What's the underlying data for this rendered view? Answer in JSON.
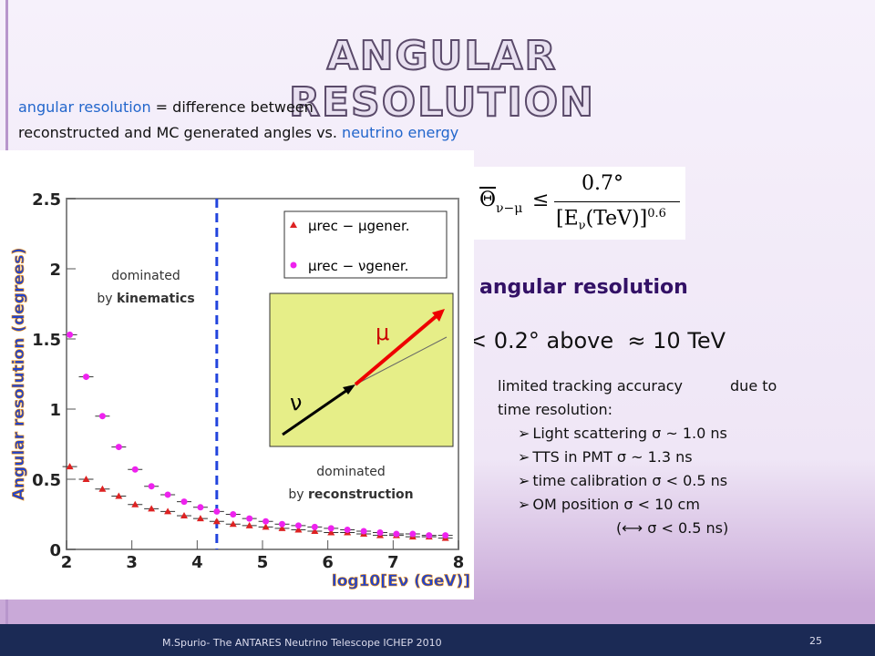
{
  "title": "ANGULAR RESOLUTION",
  "intro": {
    "line1_term": "angular resolution",
    "line1_rest": " = difference between",
    "line2_rest": "reconstructed and MC generated angles vs. ",
    "line2_term": "neutrino energy"
  },
  "formula": {
    "lhs": "Θ",
    "lhs_sub": "ν−μ",
    "relation": "≤",
    "numerator": "0.7°",
    "denominator": "E",
    "denominator_sub": "ν",
    "denominator_unit": "(TeV)",
    "exponent": "0.6"
  },
  "result": {
    "heading": "angular resolution",
    "statement": "< 0.2° above",
    "approx": "≈ 10 TeV"
  },
  "details": {
    "line1": "limited tracking accuracy",
    "line1_tail": "due to",
    "line2": "time resolution:",
    "bullets": [
      "Light scattering σ ~ 1.0 ns",
      "TTS in PMT   σ ~ 1.3 ns",
      "time calibration  σ < 0.5 ns",
      "OM position    σ < 10 cm"
    ],
    "note": "(⟷ σ < 0.5 ns)"
  },
  "footer": {
    "text": "M.Spurio- The ANTARES Neutrino Telescope    ICHEP 2010",
    "page": "25"
  },
  "chart_data": {
    "type": "scatter",
    "ylabel": "Angular resolution (degrees)",
    "xlabel": "log10[Eν (GeV)]",
    "xlim": [
      2,
      8
    ],
    "ylim": [
      0,
      2.5
    ],
    "xticks": [
      2,
      3,
      4,
      5,
      6,
      7,
      8
    ],
    "yticks": [
      0,
      0.5,
      1,
      1.5,
      2,
      2.5
    ],
    "vline": 4.3,
    "annotations": [
      {
        "line1": "dominated",
        "line2_prefix": "by ",
        "line2_bold": "kinematics"
      },
      {
        "line1": "dominated",
        "line2_prefix": "by ",
        "line2_bold": "reconstruction"
      }
    ],
    "inset_labels": {
      "muon": "μ",
      "neutrino": "ν"
    },
    "x": [
      2.05,
      2.3,
      2.55,
      2.8,
      3.05,
      3.3,
      3.55,
      3.8,
      4.05,
      4.3,
      4.55,
      4.8,
      5.05,
      5.3,
      5.55,
      5.8,
      6.05,
      6.3,
      6.55,
      6.8,
      7.05,
      7.3,
      7.55,
      7.8
    ],
    "series": [
      {
        "name": "μrec − μgener.",
        "color": "#dd2222",
        "marker": "triangle",
        "values": [
          0.59,
          0.5,
          0.43,
          0.38,
          0.32,
          0.29,
          0.27,
          0.24,
          0.22,
          0.2,
          0.18,
          0.17,
          0.16,
          0.15,
          0.14,
          0.13,
          0.12,
          0.12,
          0.11,
          0.1,
          0.1,
          0.09,
          0.09,
          0.08
        ]
      },
      {
        "name": "μrec − νgener.",
        "color": "#ee22ee",
        "marker": "circle",
        "values": [
          1.53,
          1.23,
          0.95,
          0.73,
          0.57,
          0.45,
          0.39,
          0.34,
          0.3,
          0.27,
          0.25,
          0.22,
          0.2,
          0.18,
          0.17,
          0.16,
          0.15,
          0.14,
          0.13,
          0.12,
          0.11,
          0.11,
          0.1,
          0.1
        ]
      }
    ]
  }
}
